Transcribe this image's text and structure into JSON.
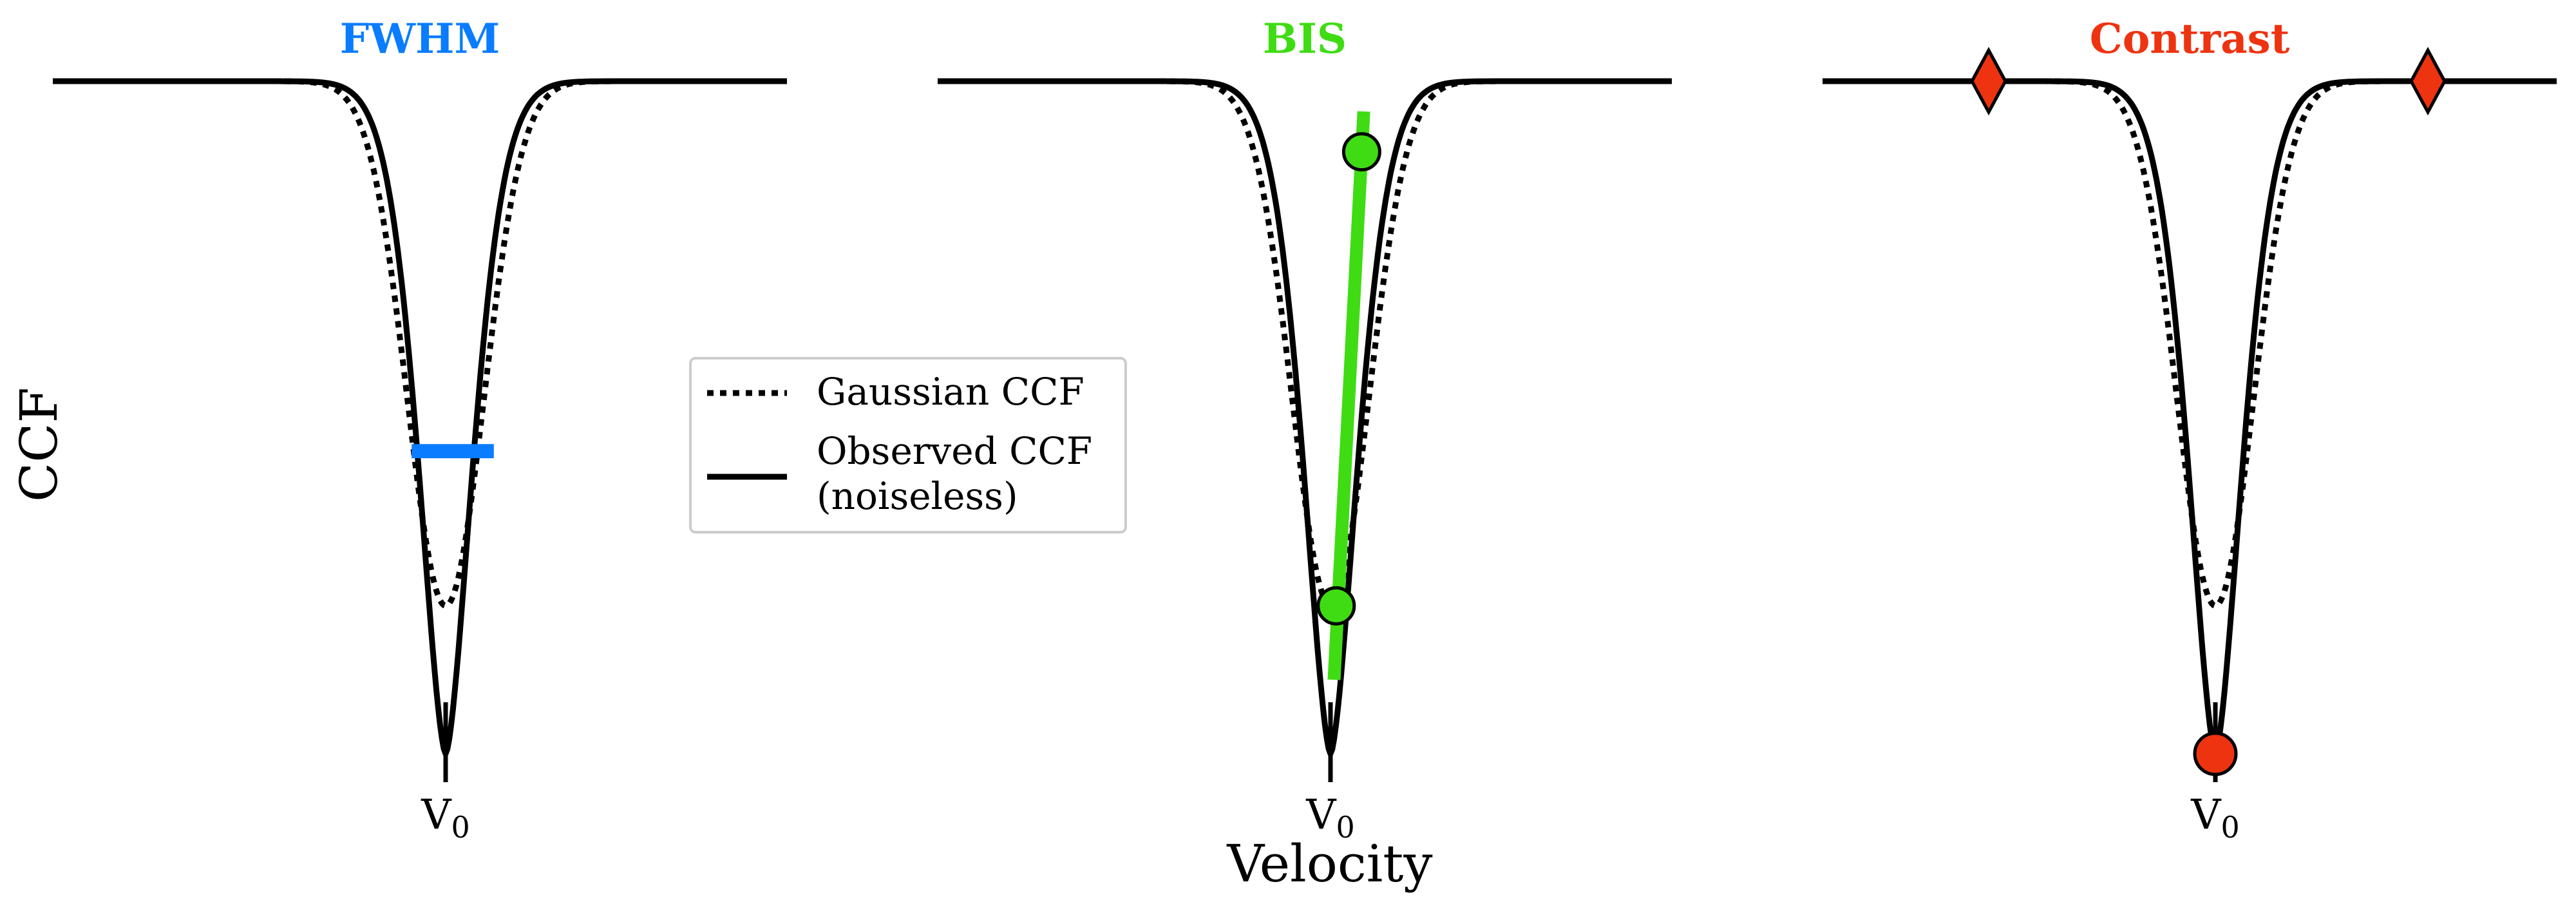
{
  "chart_data": {
    "type": "line",
    "ylabel": "CCF",
    "xlabel": "Velocity",
    "panels": [
      {
        "title": "FWHM",
        "title_color": "#0a7cff",
        "xtick_label": "V",
        "xtick_sub": "0",
        "series": [
          {
            "name": "Gaussian CCF",
            "style": "dotted",
            "color": "#000000",
            "depth": 0.78,
            "sigma": 0.4,
            "center": 0.0
          },
          {
            "name": "Observed CCF (noiseless)",
            "style": "solid",
            "color": "#000000",
            "depth": 1.0,
            "sigma": 0.38,
            "center": 0.0
          }
        ],
        "indicator": {
          "kind": "fwhm",
          "color": "#0a7cff",
          "y": 0.55,
          "x_range": [
            -0.48,
            0.68
          ]
        }
      },
      {
        "title": "BIS",
        "title_color": "#3fdc14",
        "xtick_label": "V",
        "xtick_sub": "0",
        "series": [
          {
            "name": "Gaussian CCF",
            "style": "dotted",
            "color": "#000000",
            "depth": 0.78,
            "sigma": 0.4,
            "center": 0.0
          },
          {
            "name": "Observed CCF (noiseless)",
            "style": "solid",
            "color": "#000000",
            "depth": 1.0,
            "sigma": 0.38,
            "center": 0.0
          }
        ],
        "indicator": {
          "kind": "bis",
          "color": "#3fdc14",
          "line": [
            [
              0.05,
              0.89
            ],
            [
              0.47,
              0.045
            ]
          ],
          "points": [
            [
              0.44,
              0.105
            ],
            [
              0.08,
              0.78
            ]
          ]
        }
      },
      {
        "title": "Contrast",
        "title_color": "#ee3311",
        "xtick_label": "V",
        "xtick_sub": "0",
        "series": [
          {
            "name": "Gaussian CCF",
            "style": "dotted",
            "color": "#000000",
            "depth": 0.78,
            "sigma": 0.4,
            "center": 0.0
          },
          {
            "name": "Observed CCF (noiseless)",
            "style": "solid",
            "color": "#000000",
            "depth": 1.0,
            "sigma": 0.38,
            "center": 0.0
          }
        ],
        "indicator": {
          "kind": "contrast",
          "color": "#ee3311",
          "min_point": [
            0.0,
            1.0
          ],
          "continuum_points": [
            [
              -3.2,
              0.0
            ],
            [
              3.0,
              0.0
            ]
          ]
        }
      }
    ],
    "legend": {
      "placement": "center",
      "entries": [
        {
          "label": "Gaussian CCF",
          "style": "dotted"
        },
        {
          "label": "Observed CCF\n(noiseless)",
          "style": "solid"
        }
      ]
    },
    "xlim": [
      -5.0,
      5.0
    ],
    "ylim_depth": [
      -0.1,
      1.1
    ],
    "grid": false
  }
}
